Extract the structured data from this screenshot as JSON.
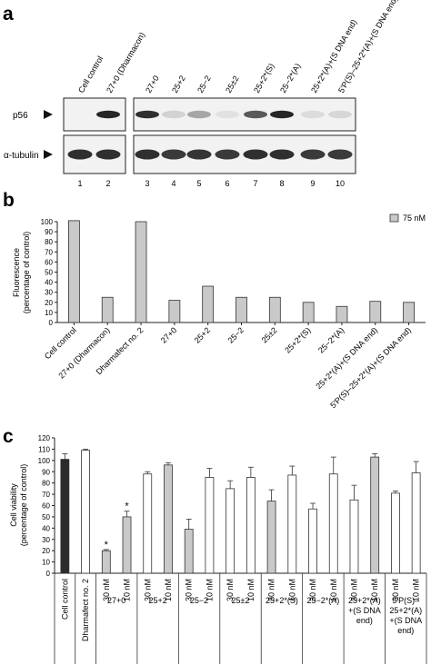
{
  "panel_labels": [
    "a",
    "b",
    "c"
  ],
  "colors": {
    "bar_gray": "#c9c9c9",
    "bar_black": "#2b2b2b",
    "bar_white": "#ffffff",
    "band_dark": "#1a1a1a"
  },
  "blot": {
    "lane_labels": [
      "Cell control",
      "27+0 (Dharmacon)",
      "27+0",
      "25+2",
      "25−2",
      "25±2",
      "25+2*(S)",
      "25−2*(A)",
      "25+2*(A)+(S DNA end)",
      "5′P(S)–25+2*(A)+(S DNA end)"
    ],
    "lane_numbers": [
      "1",
      "2",
      "3",
      "4",
      "5",
      "6",
      "7",
      "8",
      "9",
      "10"
    ],
    "row_labels": [
      "p56",
      "α-tubulin"
    ],
    "p56_intensity": [
      0,
      0.95,
      0.9,
      0.15,
      0.35,
      0.05,
      0.7,
      0.95,
      0.1,
      0.12
    ],
    "tubulin_intensity": [
      0.9,
      0.9,
      0.9,
      0.85,
      0.88,
      0.85,
      0.9,
      0.9,
      0.85,
      0.85
    ]
  },
  "chart_data": [
    {
      "type": "bar",
      "panel": "b",
      "categories": [
        "Cell control",
        "27+0 (Dharmacon)",
        "Dharmafect no. 2",
        "27+0",
        "25+2",
        "25−2",
        "25±2",
        "25+2*(S)",
        "25−2*(A)",
        "25+2*(A)+(S DNA end)",
        "5′P(S)–25+2*(A)+(S DNA end)"
      ],
      "series": [
        {
          "name": "75 nM",
          "values": [
            101,
            25,
            100,
            22,
            36,
            25,
            25,
            20,
            16,
            21,
            20
          ]
        }
      ],
      "ylabel_lines": [
        "Fluorescence",
        "(percentage of control)"
      ],
      "ylim": [
        0,
        100
      ],
      "yticks": [
        "0",
        "10",
        "20",
        "30",
        "40",
        "50",
        "60",
        "70",
        "80",
        "90",
        "100"
      ],
      "legend_position": "top-right"
    },
    {
      "type": "bar",
      "panel": "c",
      "ylabel_lines": [
        "Cell viability",
        "(percentage of control)"
      ],
      "ylim": [
        0,
        120
      ],
      "yticks": [
        "0",
        "10",
        "20",
        "30",
        "40",
        "50",
        "60",
        "70",
        "80",
        "90",
        "100",
        "110",
        "120"
      ],
      "bars": [
        {
          "label": "Cell control",
          "value": 101,
          "err": 5,
          "style": "black"
        },
        {
          "label": "Dharmafect no. 2",
          "value": 109,
          "err": 1,
          "style": "white"
        },
        {
          "label": "30 nM",
          "value": 20,
          "err": 1,
          "style": "gray",
          "star": "*"
        },
        {
          "label": "10 nM",
          "value": 50,
          "err": 5,
          "style": "gray",
          "star": "*"
        },
        {
          "label": "30 nM",
          "value": 88,
          "err": 2,
          "style": "white"
        },
        {
          "label": "10 nM",
          "value": 96,
          "err": 2,
          "style": "gray"
        },
        {
          "label": "30 nM",
          "value": 39,
          "err": 9,
          "style": "gray"
        },
        {
          "label": "10 nM",
          "value": 85,
          "err": 8,
          "style": "white"
        },
        {
          "label": "30 nM",
          "value": 75,
          "err": 7,
          "style": "white"
        },
        {
          "label": "10 nM",
          "value": 85,
          "err": 9,
          "style": "white"
        },
        {
          "label": "30 nM",
          "value": 64,
          "err": 10,
          "style": "gray"
        },
        {
          "label": "10 nM",
          "value": 87,
          "err": 8,
          "style": "white"
        },
        {
          "label": "30 nM",
          "value": 57,
          "err": 5,
          "style": "white"
        },
        {
          "label": "10 nM",
          "value": 88,
          "err": 15,
          "style": "white"
        },
        {
          "label": "30 nM",
          "value": 65,
          "err": 13,
          "style": "white"
        },
        {
          "label": "10 nM",
          "value": 103,
          "err": 3,
          "style": "gray"
        },
        {
          "label": "30 nM",
          "value": 71,
          "err": 2,
          "style": "white"
        },
        {
          "label": "10 nM",
          "value": 89,
          "err": 10,
          "style": "white"
        }
      ],
      "groups": [
        {
          "lines": [
            "27+0"
          ]
        },
        {
          "lines": [
            "25+2"
          ]
        },
        {
          "lines": [
            "25−2"
          ]
        },
        {
          "lines": [
            "25±2"
          ]
        },
        {
          "lines": [
            "25+2*(S)"
          ]
        },
        {
          "lines": [
            "25−2*(A)"
          ]
        },
        {
          "lines": [
            "25+2*(A)",
            "+(S DNA",
            "end)"
          ]
        },
        {
          "lines": [
            "5′P(S)–",
            "25+2*(A)",
            "+(S DNA",
            "end)"
          ]
        }
      ]
    }
  ]
}
